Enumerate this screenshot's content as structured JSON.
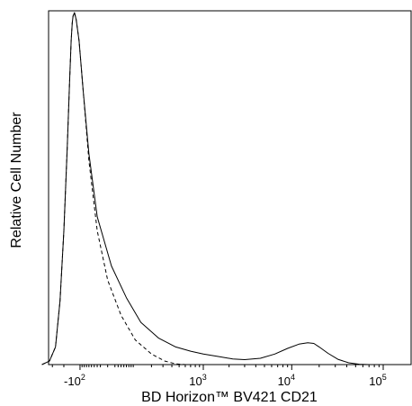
{
  "chart_data": {
    "type": "line",
    "title": "",
    "xlabel": "BD Horizon™ BV421 CD21",
    "ylabel": "Relative Cell Number",
    "x_scale": "biexponential",
    "grid": false,
    "legend": "none",
    "x_ticks": [
      {
        "value": -100,
        "base": "-10",
        "exp": "2"
      },
      {
        "value": 1000,
        "base": "10",
        "exp": "3"
      },
      {
        "value": 10000,
        "base": "10",
        "exp": "4"
      },
      {
        "value": 100000,
        "base": "10",
        "exp": "5"
      }
    ],
    "ylim": [
      0,
      100
    ],
    "series": [
      {
        "style": "solid",
        "x": [
          -420,
          -330,
          -270,
          -230,
          -200,
          -175,
          -160,
          -150,
          -143,
          -138,
          -130,
          -120,
          -105,
          -85,
          -60,
          -30,
          10,
          60,
          130,
          260,
          450,
          700,
          1000,
          1500,
          2200,
          3000,
          4500,
          6500,
          9000,
          12000,
          15000,
          17500,
          20000,
          25000,
          32000,
          42000,
          55000,
          70000
        ],
        "y": [
          0,
          1,
          5,
          18,
          38,
          62,
          80,
          92,
          97,
          99,
          100,
          98,
          92,
          78,
          60,
          42,
          28,
          19,
          12,
          7.5,
          5,
          3.8,
          3,
          2.3,
          1.6,
          1.4,
          1.8,
          3,
          4.6,
          5.8,
          6.2,
          6,
          5,
          3.2,
          1.5,
          0.5,
          0.1,
          0
        ]
      },
      {
        "style": "dashed",
        "x": [
          -420,
          -330,
          -270,
          -230,
          -200,
          -175,
          -160,
          -150,
          -143,
          -138,
          -130,
          -120,
          -105,
          -85,
          -60,
          -30,
          0,
          40,
          100,
          200,
          320,
          450,
          600
        ],
        "y": [
          0,
          1,
          5,
          18,
          38,
          62,
          80,
          92,
          97,
          99,
          100,
          98,
          92,
          78,
          58,
          38,
          24,
          14,
          7,
          3,
          1,
          0.2,
          0
        ]
      }
    ]
  }
}
